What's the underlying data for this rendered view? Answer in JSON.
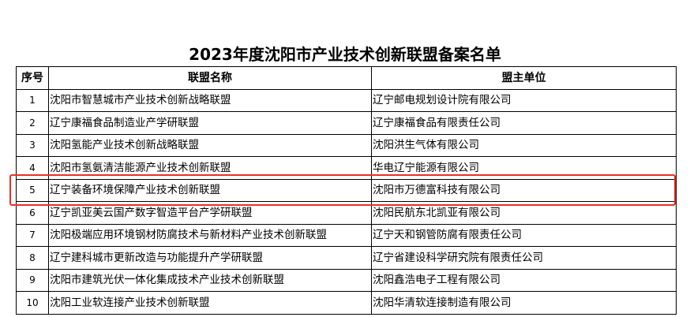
{
  "title": "2023年度沈阳市产业技术创新联盟备案名单",
  "columns": [
    "序号",
    "联盟名称",
    "盟主单位"
  ],
  "rows": [
    {
      "no": "1",
      "name": "沈阳市智慧城市产业技术创新战略联盟",
      "lead": "辽宁邮电规划设计院有限公司"
    },
    {
      "no": "2",
      "name": "辽宁康福食品制造业产学研联盟",
      "lead": "辽宁康福食品有限责任公司"
    },
    {
      "no": "3",
      "name": "沈阳氢能产业技术创新战略联盟",
      "lead": "沈阳洪生气体有限公司"
    },
    {
      "no": "4",
      "name": "沈阳市氢氨清洁能源产业技术创新联盟",
      "lead": "华电辽宁能源有限公司"
    },
    {
      "no": "5",
      "name": "辽宁装备环境保障产业技术创新联盟",
      "lead": "沈阳市万德富科技有限公司"
    },
    {
      "no": "6",
      "name": "辽宁凯亚美云国产数字智造平台产学研联盟",
      "lead": "沈阳民航东北凯亚有限公司"
    },
    {
      "no": "7",
      "name": "沈阳极端应用环境钢材防腐技术与新材料产业技术创新联盟",
      "lead": "辽宁天和钢管防腐有限责任公司"
    },
    {
      "no": "8",
      "name": "辽宁建科城市更新改造与功能提升产学研联盟",
      "lead": "辽宁省建设科学研究院有限责任公司"
    },
    {
      "no": "9",
      "name": "沈阳市建筑光伏一体化集成技术产业技术创新联盟",
      "lead": "沈阳鑫浩电子工程有限公司"
    },
    {
      "no": "10",
      "name": "沈阳工业软连接产业技术创新联盟",
      "lead": "沈阳华清软连接制造有限公司"
    }
  ],
  "highlight_color": "#e8302a"
}
